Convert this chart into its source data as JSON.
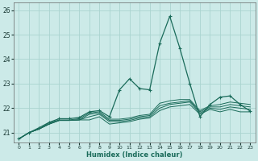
{
  "xlabel": "Humidex (Indice chaleur)",
  "xlim": [
    -0.5,
    23.5
  ],
  "ylim": [
    20.6,
    26.3
  ],
  "yticks": [
    21,
    22,
    23,
    24,
    25,
    26
  ],
  "xticks": [
    0,
    1,
    2,
    3,
    4,
    5,
    6,
    7,
    8,
    9,
    10,
    11,
    12,
    13,
    14,
    15,
    16,
    17,
    18,
    19,
    20,
    21,
    22,
    23
  ],
  "bg_color": "#cceae8",
  "grid_color": "#aad4d0",
  "line_color": "#1a6b5a",
  "series": [
    [
      20.75,
      21.0,
      21.15,
      21.35,
      21.5,
      21.5,
      21.52,
      21.52,
      21.65,
      21.35,
      21.4,
      21.45,
      21.55,
      21.6,
      21.9,
      22.05,
      22.1,
      22.15,
      21.75,
      21.95,
      21.85,
      21.95,
      21.85,
      21.85
    ],
    [
      20.75,
      21.0,
      21.15,
      21.35,
      21.5,
      21.5,
      21.52,
      21.65,
      21.75,
      21.45,
      21.45,
      21.5,
      21.6,
      21.65,
      22.0,
      22.15,
      22.2,
      22.25,
      21.8,
      22.0,
      21.95,
      22.05,
      22.0,
      21.95
    ],
    [
      20.75,
      21.0,
      21.15,
      21.35,
      21.5,
      21.5,
      21.52,
      21.75,
      21.8,
      21.5,
      21.5,
      21.55,
      21.65,
      21.7,
      22.1,
      22.2,
      22.25,
      22.3,
      21.85,
      22.05,
      22.05,
      22.15,
      22.1,
      22.05
    ],
    [
      20.75,
      21.0,
      21.15,
      21.4,
      21.52,
      21.52,
      21.57,
      21.8,
      21.85,
      21.55,
      21.55,
      21.6,
      21.7,
      21.75,
      22.2,
      22.3,
      22.35,
      22.35,
      21.9,
      22.1,
      22.15,
      22.25,
      22.2,
      22.15
    ],
    [
      20.75,
      21.0,
      21.2,
      21.42,
      21.57,
      21.57,
      21.62,
      21.85,
      21.9,
      21.65,
      22.75,
      23.2,
      22.8,
      22.75,
      24.65,
      25.75,
      24.45,
      23.0,
      21.65,
      22.15,
      22.45,
      22.5,
      22.15,
      21.88
    ]
  ],
  "marker_series_idx": 4
}
